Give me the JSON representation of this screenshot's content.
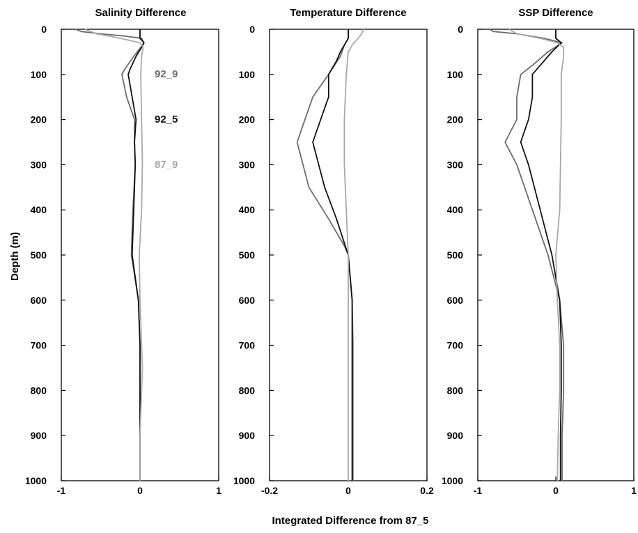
{
  "figure": {
    "ylabel": "Depth (m)",
    "xlabel": "Integrated Difference from 87_5"
  },
  "legend": [
    {
      "name": "92_9",
      "color": "#6b6b6b"
    },
    {
      "name": "92_5",
      "color": "#111111"
    },
    {
      "name": "87_9",
      "color": "#a8a8a8"
    }
  ],
  "chart_data": [
    {
      "type": "line",
      "title": "Salinity Difference",
      "xlabel": "",
      "ylabel": "Depth (m)",
      "xlim": [
        -1,
        1
      ],
      "ylim": [
        0,
        1000
      ],
      "y_reversed": true,
      "xticks": [
        -1,
        0,
        1
      ],
      "xtick_labels": [
        "-1",
        "0",
        "1"
      ],
      "yticks": [
        0,
        100,
        200,
        300,
        400,
        500,
        600,
        700,
        800,
        900,
        1000
      ],
      "grid": false,
      "series": [
        {
          "name": "92_9",
          "color": "#6b6b6b",
          "points": [
            [
              -0.82,
              0
            ],
            [
              -0.75,
              5
            ],
            [
              -0.5,
              10
            ],
            [
              -0.2,
              15
            ],
            [
              0.02,
              20
            ],
            [
              0.05,
              30
            ],
            [
              0.01,
              40
            ],
            [
              -0.08,
              60
            ],
            [
              -0.2,
              90
            ],
            [
              -0.23,
              100
            ],
            [
              -0.17,
              150
            ],
            [
              -0.07,
              200
            ],
            [
              -0.07,
              250
            ],
            [
              -0.06,
              300
            ],
            [
              -0.09,
              400
            ],
            [
              -0.11,
              500
            ],
            [
              -0.02,
              600
            ],
            [
              0.0,
              700
            ],
            [
              0.0,
              800
            ],
            [
              0.0,
              900
            ],
            [
              0.0,
              1000
            ]
          ]
        },
        {
          "name": "92_5",
          "color": "#111111",
          "points": [
            [
              0.0,
              0
            ],
            [
              0.0,
              20
            ],
            [
              0.05,
              30
            ],
            [
              0.02,
              40
            ],
            [
              -0.05,
              60
            ],
            [
              -0.13,
              90
            ],
            [
              -0.15,
              100
            ],
            [
              -0.1,
              150
            ],
            [
              -0.05,
              200
            ],
            [
              -0.07,
              250
            ],
            [
              -0.06,
              300
            ],
            [
              -0.08,
              400
            ],
            [
              -0.1,
              500
            ],
            [
              -0.02,
              600
            ],
            [
              0.0,
              700
            ],
            [
              0.0,
              800
            ],
            [
              0.0,
              900
            ],
            [
              0.0,
              1000
            ]
          ]
        },
        {
          "name": "87_9",
          "color": "#a8a8a8",
          "points": [
            [
              -0.7,
              0
            ],
            [
              -0.55,
              10
            ],
            [
              -0.4,
              15
            ],
            [
              -0.25,
              20
            ],
            [
              0.0,
              30
            ],
            [
              0.04,
              40
            ],
            [
              0.02,
              60
            ],
            [
              0.01,
              100
            ],
            [
              0.02,
              200
            ],
            [
              0.03,
              300
            ],
            [
              0.02,
              400
            ],
            [
              -0.01,
              500
            ],
            [
              0.0,
              600
            ],
            [
              0.02,
              700
            ],
            [
              0.03,
              750
            ],
            [
              0.02,
              800
            ],
            [
              0.0,
              900
            ],
            [
              0.0,
              1000
            ]
          ]
        }
      ]
    },
    {
      "type": "line",
      "title": "Temperature Difference",
      "xlabel": "",
      "ylabel": "",
      "xlim": [
        -0.2,
        0.2
      ],
      "ylim": [
        0,
        1000
      ],
      "y_reversed": true,
      "xticks": [
        -0.2,
        0,
        0.2
      ],
      "xtick_labels": [
        "-0.2",
        "0",
        "0.2"
      ],
      "yticks": [
        0,
        100,
        200,
        300,
        400,
        500,
        600,
        700,
        800,
        900,
        1000
      ],
      "grid": false,
      "series": [
        {
          "name": "92_9",
          "color": "#6b6b6b",
          "points": [
            [
              0.0,
              0
            ],
            [
              0.0,
              20
            ],
            [
              -0.01,
              35
            ],
            [
              -0.02,
              60
            ],
            [
              -0.05,
              100
            ],
            [
              -0.09,
              150
            ],
            [
              -0.13,
              250
            ],
            [
              -0.1,
              350
            ],
            [
              -0.05,
              420
            ],
            [
              -0.01,
              480
            ],
            [
              0.0,
              500
            ],
            [
              0.01,
              600
            ],
            [
              0.012,
              700
            ],
            [
              0.012,
              800
            ],
            [
              0.012,
              900
            ],
            [
              0.012,
              1000
            ]
          ]
        },
        {
          "name": "92_5",
          "color": "#111111",
          "points": [
            [
              0.0,
              0
            ],
            [
              0.0,
              20
            ],
            [
              -0.01,
              35
            ],
            [
              -0.02,
              50
            ],
            [
              -0.03,
              70
            ],
            [
              -0.05,
              100
            ],
            [
              -0.05,
              150
            ],
            [
              -0.07,
              200
            ],
            [
              -0.09,
              250
            ],
            [
              -0.06,
              350
            ],
            [
              -0.03,
              420
            ],
            [
              0.0,
              500
            ],
            [
              0.01,
              600
            ],
            [
              0.01,
              700
            ],
            [
              0.01,
              800
            ],
            [
              0.01,
              900
            ],
            [
              0.01,
              1000
            ]
          ]
        },
        {
          "name": "87_9",
          "color": "#a8a8a8",
          "points": [
            [
              0.04,
              0
            ],
            [
              0.03,
              15
            ],
            [
              0.02,
              25
            ],
            [
              0.01,
              35
            ],
            [
              0.0,
              50
            ],
            [
              -0.005,
              100
            ],
            [
              -0.01,
              200
            ],
            [
              -0.01,
              300
            ],
            [
              -0.005,
              400
            ],
            [
              0.0,
              500
            ],
            [
              0.0,
              600
            ],
            [
              0.0,
              700
            ],
            [
              0.0,
              800
            ],
            [
              0.0,
              900
            ],
            [
              0.0,
              1000
            ]
          ]
        }
      ]
    },
    {
      "type": "line",
      "title": "SSP Difference",
      "xlabel": "",
      "ylabel": "",
      "xlim": [
        -1,
        1
      ],
      "ylim": [
        0,
        1000
      ],
      "y_reversed": true,
      "xticks": [
        -1,
        0,
        1
      ],
      "xtick_labels": [
        "-1",
        "0",
        "1"
      ],
      "yticks": [
        0,
        100,
        200,
        300,
        400,
        500,
        600,
        700,
        800,
        900,
        1000
      ],
      "grid": false,
      "series": [
        {
          "name": "92_9",
          "color": "#6b6b6b",
          "points": [
            [
              -0.85,
              0
            ],
            [
              -0.8,
              5
            ],
            [
              -0.5,
              10
            ],
            [
              -0.15,
              20
            ],
            [
              0.08,
              30
            ],
            [
              -0.1,
              50
            ],
            [
              -0.3,
              80
            ],
            [
              -0.45,
              100
            ],
            [
              -0.5,
              150
            ],
            [
              -0.5,
              200
            ],
            [
              -0.65,
              250
            ],
            [
              -0.5,
              300
            ],
            [
              -0.3,
              400
            ],
            [
              -0.1,
              500
            ],
            [
              0.05,
              600
            ],
            [
              0.1,
              700
            ],
            [
              0.1,
              800
            ],
            [
              0.08,
              900
            ],
            [
              0.08,
              1000
            ]
          ]
        },
        {
          "name": "92_5",
          "color": "#111111",
          "points": [
            [
              0.0,
              0
            ],
            [
              0.0,
              20
            ],
            [
              0.07,
              30
            ],
            [
              -0.05,
              50
            ],
            [
              -0.2,
              80
            ],
            [
              -0.3,
              100
            ],
            [
              -0.3,
              150
            ],
            [
              -0.35,
              200
            ],
            [
              -0.45,
              250
            ],
            [
              -0.35,
              300
            ],
            [
              -0.2,
              400
            ],
            [
              -0.05,
              500
            ],
            [
              0.05,
              600
            ],
            [
              0.07,
              700
            ],
            [
              0.07,
              800
            ],
            [
              0.06,
              900
            ],
            [
              0.06,
              1000
            ]
          ]
        },
        {
          "name": "87_9",
          "color": "#a8a8a8",
          "points": [
            [
              -0.6,
              0
            ],
            [
              -0.5,
              10
            ],
            [
              -0.35,
              15
            ],
            [
              -0.2,
              20
            ],
            [
              0.02,
              30
            ],
            [
              0.1,
              40
            ],
            [
              0.1,
              60
            ],
            [
              0.07,
              100
            ],
            [
              0.07,
              200
            ],
            [
              0.06,
              300
            ],
            [
              0.05,
              400
            ],
            [
              0.0,
              500
            ],
            [
              0.02,
              600
            ],
            [
              0.05,
              700
            ],
            [
              0.05,
              800
            ],
            [
              0.03,
              900
            ],
            [
              0.02,
              1000
            ]
          ]
        }
      ]
    }
  ]
}
